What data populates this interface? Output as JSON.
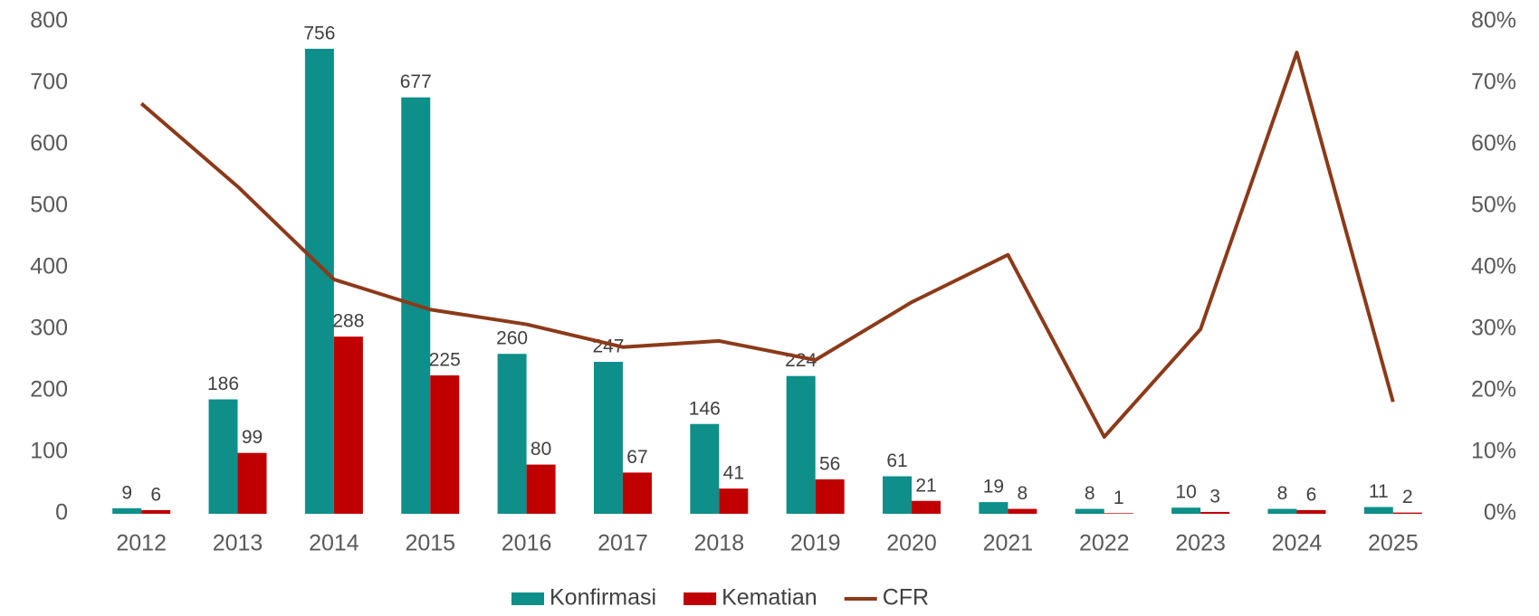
{
  "chart_data": {
    "type": "bar-line",
    "categories": [
      "2012",
      "2013",
      "2014",
      "2015",
      "2016",
      "2017",
      "2018",
      "2019",
      "2020",
      "2021",
      "2022",
      "2023",
      "2024",
      "2025"
    ],
    "series": [
      {
        "name": "Konfirmasi",
        "type": "bar",
        "color": "#0e8f8a",
        "values": [
          9,
          186,
          756,
          677,
          260,
          247,
          146,
          224,
          61,
          19,
          8,
          10,
          8,
          11
        ]
      },
      {
        "name": "Kematian",
        "type": "bar",
        "color": "#c00000",
        "values": [
          6,
          99,
          288,
          225,
          80,
          67,
          41,
          56,
          21,
          8,
          1,
          3,
          6,
          2
        ]
      },
      {
        "name": "CFR",
        "type": "line",
        "axis": "y2",
        "color": "#8b3a1a",
        "values": [
          66.7,
          53.2,
          38.1,
          33.2,
          30.8,
          27.1,
          28.1,
          25,
          34.4,
          42.1,
          12.5,
          30,
          75,
          18.2
        ]
      }
    ],
    "ylim": [
      0,
      800
    ],
    "yticks": [
      0,
      100,
      200,
      300,
      400,
      500,
      600,
      700,
      800
    ],
    "y2lim": [
      0,
      80
    ],
    "y2ticks": [
      {
        "value": 0,
        "label": "0%"
      },
      {
        "value": 10,
        "label": "10%"
      },
      {
        "value": 20,
        "label": "20%"
      },
      {
        "value": 30,
        "label": "30%"
      },
      {
        "value": 40,
        "label": "40%"
      },
      {
        "value": 50,
        "label": "50%"
      },
      {
        "value": 60,
        "label": "60%"
      },
      {
        "value": 70,
        "label": "70%"
      },
      {
        "value": 80,
        "label": "80%"
      }
    ],
    "grid": false,
    "legend": "bottom"
  }
}
